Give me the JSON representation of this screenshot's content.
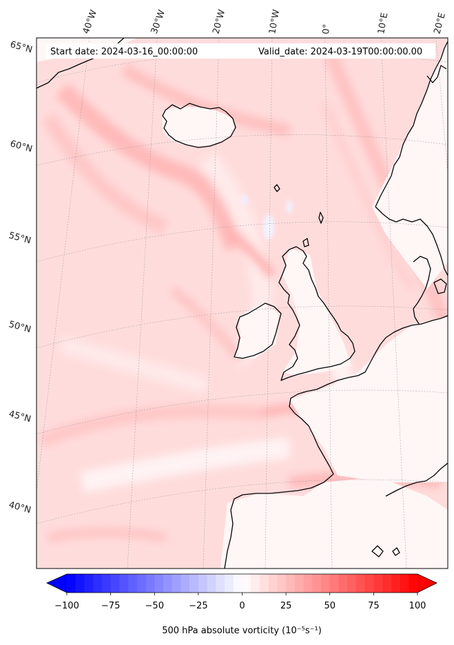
{
  "map": {
    "start_label": "Start date: 2024-03-16_00:00:00",
    "valid_label": "Valid_date: 2024-03-19T00:00:00.00",
    "lon_labels": [
      "40°W",
      "30°W",
      "20°W",
      "10°W",
      "0°",
      "10°E",
      "20°E"
    ],
    "lat_labels": [
      "65°N",
      "60°N",
      "55°N",
      "50°N",
      "45°N",
      "40°N"
    ]
  },
  "colorbar": {
    "label": "500 hPa absolute vorticity (10⁻⁵s⁻¹)",
    "ticks": [
      "−100",
      "−75",
      "−50",
      "−25",
      "0",
      "25",
      "50",
      "75",
      "100"
    ],
    "tick_values": [
      -100,
      -75,
      -50,
      -25,
      0,
      25,
      50,
      75,
      100
    ],
    "min": -100,
    "max": 100,
    "colormap": "bwr",
    "low_color": "#0000ff",
    "mid_color": "#ffffff",
    "high_color": "#ff0000"
  },
  "colors": {
    "background_field": "#ffd9d9",
    "coastline": "#000000",
    "gridline": "#999999"
  }
}
